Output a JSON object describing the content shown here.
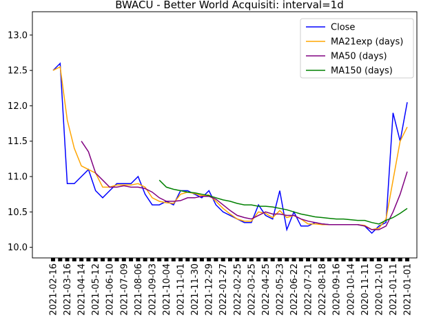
{
  "chart_data": {
    "type": "line",
    "title": "BWACU - Better World Acquisiti: interval=1d",
    "categories": [
      "2021-02-16",
      null,
      "2021-03-16",
      null,
      "2021-04-14",
      null,
      "2021-05-12",
      null,
      "2021-06-10",
      null,
      "2021-07-09",
      null,
      "2021-08-06",
      null,
      "2021-09-03",
      null,
      "2021-10-04",
      null,
      "2021-11-01",
      null,
      "2021-11-30",
      null,
      "2021-12-29",
      null,
      "2022-01-27",
      null,
      "2022-02-25",
      null,
      "2022-03-25",
      null,
      "2022-04-25",
      null,
      "2022-05-23",
      null,
      "2022-06-22",
      null,
      "2022-07-21",
      null,
      "2022-08-18",
      null,
      "2020-09-16",
      null,
      "2020-10-14",
      null,
      "2020-11-11",
      null,
      "2020-12-10",
      null,
      "2021-01-11",
      null,
      "2021-01-01"
    ],
    "series": [
      {
        "name": "Close",
        "color": "#0000ff",
        "values": [
          12.5,
          12.6,
          10.9,
          10.9,
          11.0,
          11.1,
          10.8,
          10.7,
          10.8,
          10.9,
          10.9,
          10.9,
          11.0,
          10.75,
          10.6,
          10.6,
          10.65,
          10.6,
          10.8,
          10.8,
          10.75,
          10.7,
          10.8,
          10.6,
          10.5,
          10.45,
          10.4,
          10.35,
          10.35,
          10.6,
          10.45,
          10.4,
          10.8,
          10.25,
          10.5,
          10.3,
          10.3,
          10.35,
          10.33,
          10.32,
          10.32,
          10.32,
          10.32,
          10.32,
          10.3,
          10.2,
          10.3,
          10.35,
          11.9,
          11.5,
          12.05
        ]
      },
      {
        "name": "MA21exp (days)",
        "color": "#ffa500",
        "values": [
          12.5,
          12.55,
          11.8,
          11.4,
          11.15,
          11.1,
          11.05,
          10.85,
          10.85,
          10.88,
          10.88,
          10.88,
          10.9,
          10.85,
          10.7,
          10.65,
          10.63,
          10.62,
          10.75,
          10.78,
          10.76,
          10.73,
          10.74,
          10.65,
          10.55,
          10.47,
          10.4,
          10.37,
          10.37,
          10.5,
          10.48,
          10.42,
          10.52,
          10.42,
          10.45,
          10.4,
          10.33,
          10.33,
          10.32,
          10.32,
          10.32,
          10.32,
          10.32,
          10.32,
          10.31,
          10.25,
          10.27,
          10.4,
          10.95,
          11.5,
          11.7
        ]
      },
      {
        "name": "MA50 (days)",
        "color": "#800080",
        "values": [
          null,
          null,
          null,
          null,
          11.5,
          11.35,
          11.05,
          10.95,
          10.85,
          10.85,
          10.87,
          10.85,
          10.85,
          10.83,
          10.78,
          10.7,
          10.65,
          10.65,
          10.66,
          10.7,
          10.7,
          10.72,
          10.72,
          10.68,
          10.6,
          10.52,
          10.45,
          10.42,
          10.4,
          10.45,
          10.5,
          10.47,
          10.47,
          10.45,
          10.45,
          10.4,
          10.37,
          10.35,
          10.33,
          10.32,
          10.32,
          10.32,
          10.32,
          10.32,
          10.3,
          10.25,
          10.25,
          10.3,
          10.5,
          10.75,
          11.07
        ]
      },
      {
        "name": "MA150 (days)",
        "color": "#008000",
        "values": [
          null,
          null,
          null,
          null,
          null,
          null,
          null,
          null,
          null,
          null,
          null,
          null,
          null,
          null,
          null,
          10.95,
          10.85,
          10.82,
          10.8,
          10.78,
          10.77,
          10.75,
          10.73,
          10.7,
          10.67,
          10.65,
          10.62,
          10.6,
          10.6,
          10.58,
          10.58,
          10.57,
          10.55,
          10.53,
          10.5,
          10.47,
          10.45,
          10.43,
          10.42,
          10.41,
          10.4,
          10.4,
          10.39,
          10.38,
          10.38,
          10.35,
          10.33,
          10.38,
          10.42,
          10.48,
          10.55
        ]
      }
    ],
    "ylim": [
      9.85,
      13.33
    ],
    "yticks": [
      {
        "value": 10,
        "label": "10.0"
      },
      {
        "value": 10.5,
        "label": "10.5"
      },
      {
        "value": 11,
        "label": "11.0"
      },
      {
        "value": 11.5,
        "label": "11.5"
      },
      {
        "value": 12,
        "label": "12.0"
      },
      {
        "value": 12.5,
        "label": "12.5"
      },
      {
        "value": 13,
        "label": "13.0"
      }
    ],
    "legend": "upper right"
  }
}
